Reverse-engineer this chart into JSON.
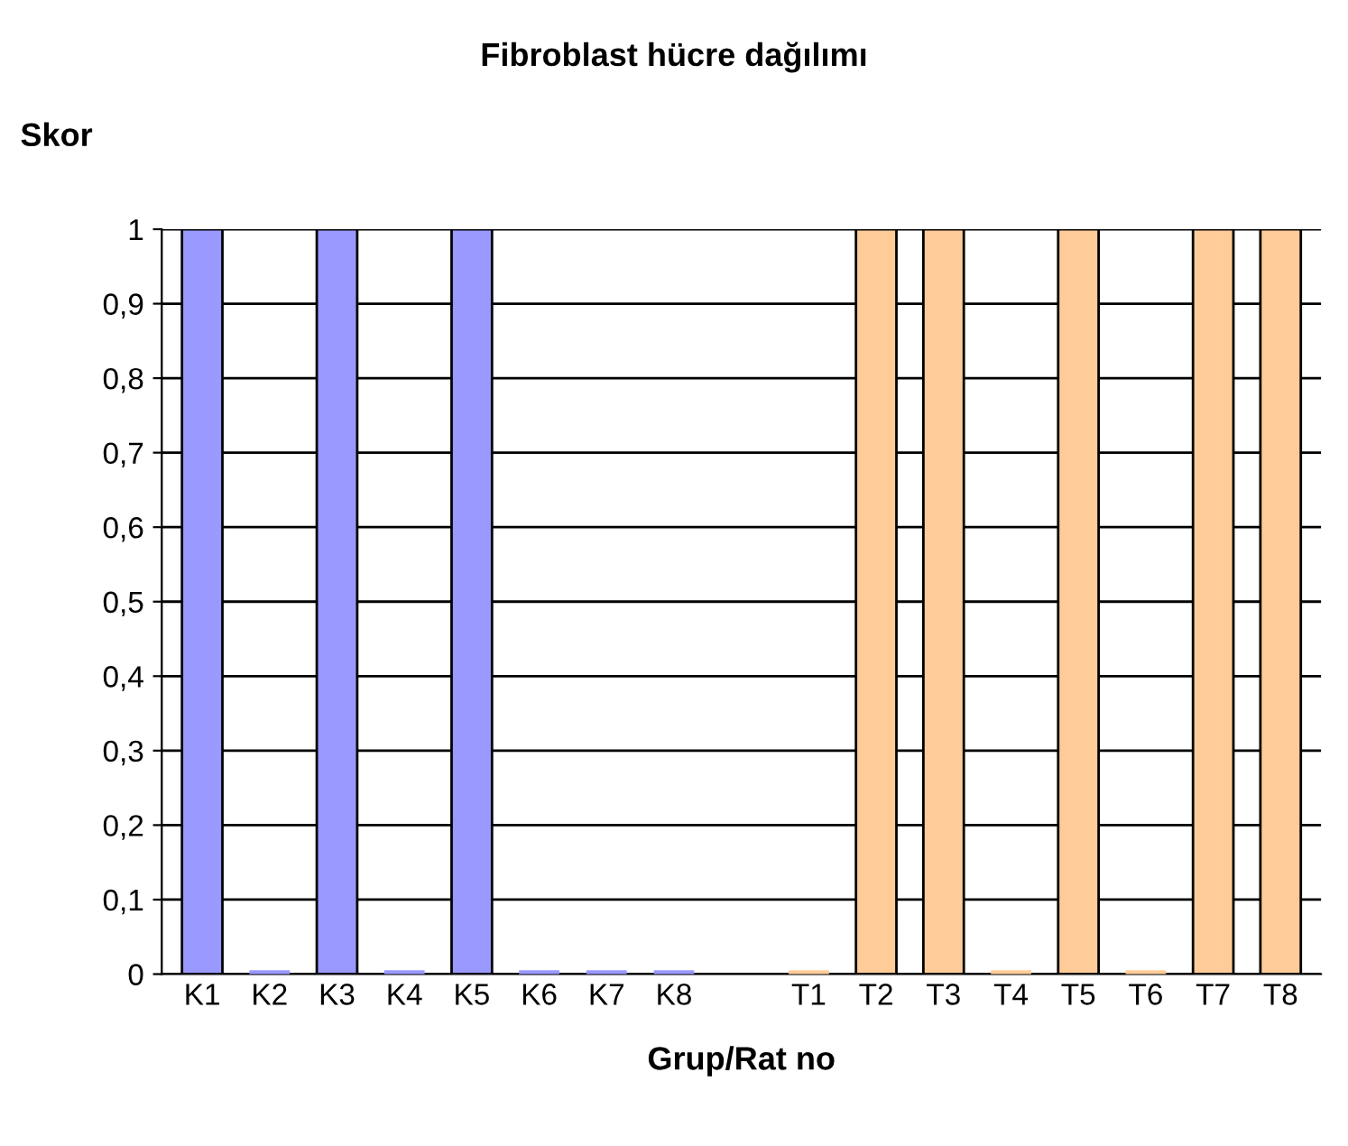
{
  "chart_data": {
    "type": "bar",
    "title": "Fibroblast hücre dağılımı",
    "xlabel": "Grup/Rat no",
    "ylabel": "Skor",
    "categories": [
      "K1",
      "K2",
      "K3",
      "K4",
      "K5",
      "K6",
      "K7",
      "K8",
      null,
      "T1",
      "T2",
      "T3",
      "T4",
      "T5",
      "T6",
      "T7",
      "T8"
    ],
    "values": [
      1,
      0,
      1,
      0,
      1,
      0,
      0,
      0,
      null,
      0,
      1,
      1,
      0,
      1,
      0,
      1,
      1
    ],
    "colors": [
      "#9999ff",
      "#9999ff",
      "#9999ff",
      "#9999ff",
      "#9999ff",
      "#9999ff",
      "#9999ff",
      "#9999ff",
      "#9999ff",
      "#ffcc99",
      "#ffcc99",
      "#ffcc99",
      "#ffcc99",
      "#ffcc99",
      "#ffcc99",
      "#ffcc99",
      "#ffcc99"
    ],
    "ylim": [
      0,
      1
    ],
    "yticks": [
      0,
      {
        "value": 0.1,
        "label": "0,1"
      },
      {
        "value": 0.2,
        "label": "0,2"
      },
      {
        "value": 0.3,
        "label": "0,3"
      },
      {
        "value": 0.4,
        "label": "0,4"
      },
      {
        "value": 0.5,
        "label": "0,5"
      },
      {
        "value": 0.6,
        "label": "0,6"
      },
      {
        "value": 0.7,
        "label": "0,7"
      },
      {
        "value": 0.8,
        "label": "0,8"
      },
      {
        "value": 0.9,
        "label": "0,9"
      },
      1
    ],
    "grid": "y",
    "legend": false
  }
}
